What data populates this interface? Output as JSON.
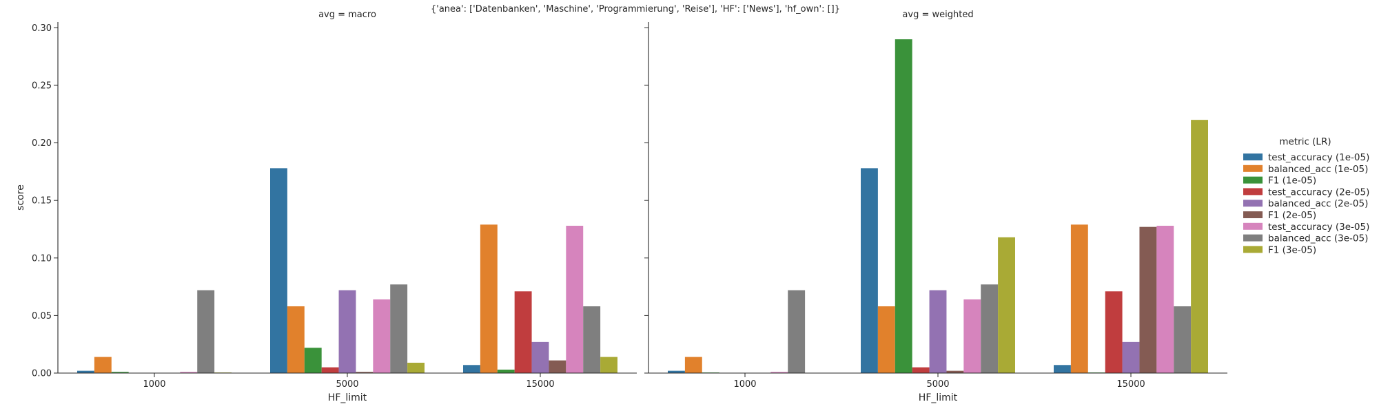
{
  "chart_data": {
    "type": "bar",
    "suptitle": "{'anea': ['Datenbanken', 'Maschine', 'Programmierung', 'Reise'], 'HF': ['News'], 'hf_own': []}",
    "xlabel": "HF_limit",
    "ylabel": "score",
    "categories": [
      "1000",
      "5000",
      "15000"
    ],
    "ylim": [
      0,
      0.305
    ],
    "yticks": [
      "0.00",
      "0.05",
      "0.10",
      "0.15",
      "0.20",
      "0.25",
      "0.30"
    ],
    "sharey": true,
    "grid": false,
    "legend": {
      "title": "metric (LR)",
      "placement": "right"
    },
    "series": [
      {
        "name": "test_accuracy (1e-05)",
        "color": "#3274a1"
      },
      {
        "name": "balanced_acc (1e-05)",
        "color": "#e1812c"
      },
      {
        "name": "F1 (1e-05)",
        "color": "#3a923a"
      },
      {
        "name": "test_accuracy (2e-05)",
        "color": "#c03d3e"
      },
      {
        "name": "balanced_acc (2e-05)",
        "color": "#9372b2"
      },
      {
        "name": "F1 (2e-05)",
        "color": "#845b53"
      },
      {
        "name": "test_accuracy (3e-05)",
        "color": "#d684bd"
      },
      {
        "name": "balanced_acc (3e-05)",
        "color": "#7f7f7f"
      },
      {
        "name": "F1 (3e-05)",
        "color": "#a9aa35"
      }
    ],
    "panels": [
      {
        "title": "avg = macro",
        "values": [
          [
            0.002,
            0.178,
            0.007
          ],
          [
            0.014,
            0.058,
            0.129
          ],
          [
            0.001,
            0.022,
            0.003
          ],
          [
            0.0,
            0.005,
            0.071
          ],
          [
            0.0,
            0.072,
            0.027
          ],
          [
            0.0,
            0.001,
            0.011
          ],
          [
            0.001,
            0.064,
            0.128
          ],
          [
            0.072,
            0.077,
            0.058
          ],
          [
            0.0005,
            0.009,
            0.014
          ]
        ]
      },
      {
        "title": "avg = weighted",
        "values": [
          [
            0.002,
            0.178,
            0.007
          ],
          [
            0.014,
            0.058,
            0.129
          ],
          [
            0.0005,
            0.29,
            0.0005
          ],
          [
            0.0,
            0.005,
            0.071
          ],
          [
            0.0,
            0.072,
            0.027
          ],
          [
            0.0,
            0.002,
            0.127
          ],
          [
            0.001,
            0.064,
            0.128
          ],
          [
            0.072,
            0.077,
            0.058
          ],
          [
            0.0,
            0.118,
            0.22
          ]
        ]
      }
    ]
  }
}
